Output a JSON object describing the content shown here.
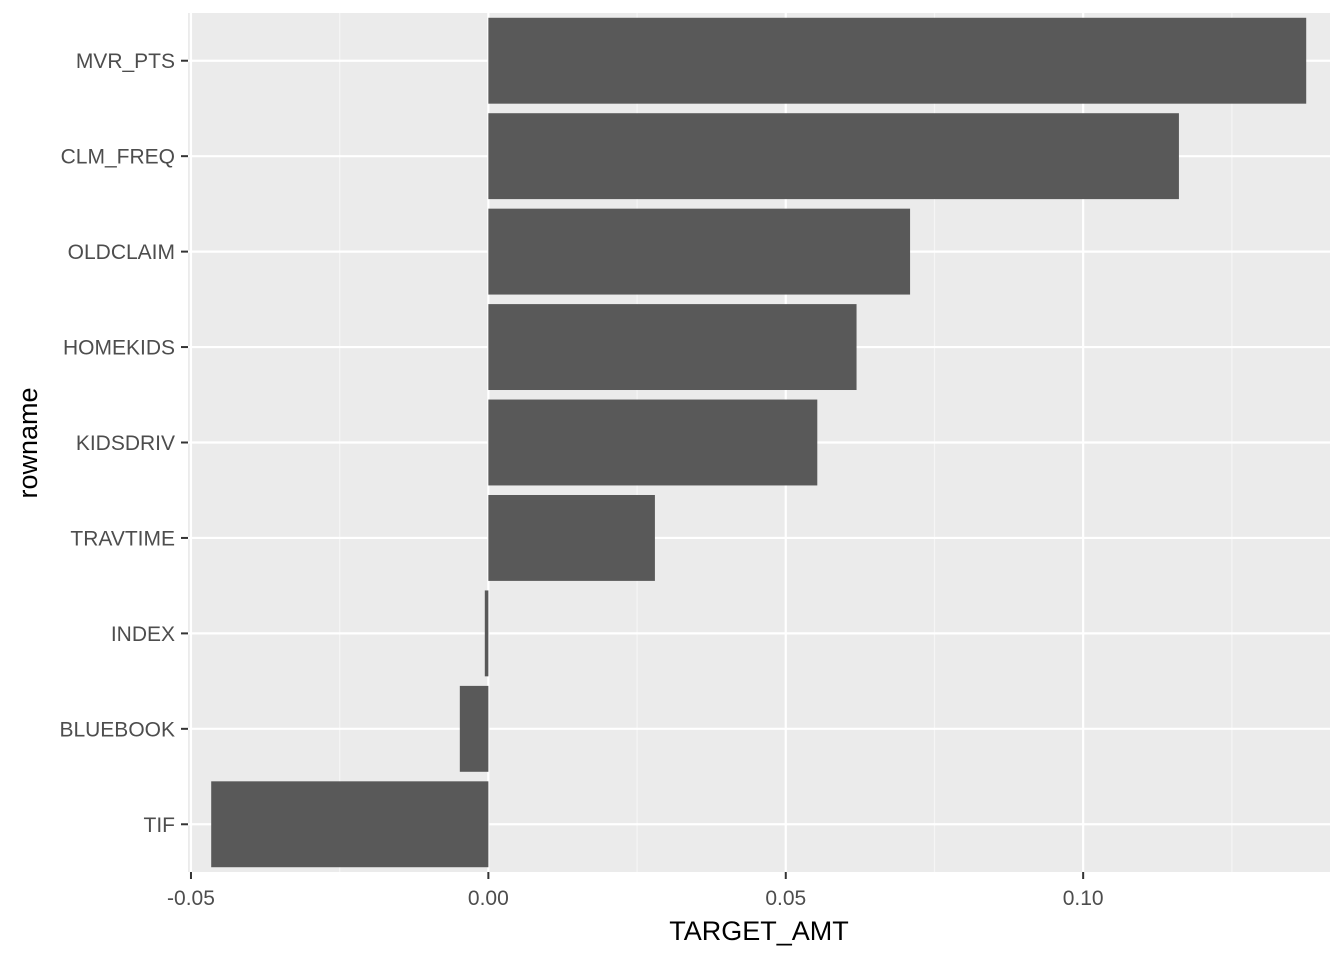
{
  "chart_data": {
    "type": "bar",
    "orientation": "horizontal",
    "title": "",
    "xlabel": "TARGET_AMT",
    "ylabel": "rowname",
    "categories": [
      "MVR_PTS",
      "CLM_FREQ",
      "OLDCLAIM",
      "HOMEKIDS",
      "KIDSDRIV",
      "TRAVTIME",
      "INDEX",
      "BLUEBOOK",
      "TIF"
    ],
    "values": [
      0.1375,
      0.1161,
      0.0709,
      0.0619,
      0.0553,
      0.028,
      -0.0006,
      -0.0048,
      -0.0466
    ],
    "xlim": [
      -0.0505,
      0.1415
    ],
    "x_ticks": [
      -0.05,
      0.0,
      0.05,
      0.1
    ],
    "x_tick_labels": [
      "-0.05",
      "0.00",
      "0.05",
      "0.10"
    ],
    "grid": true,
    "colors": {
      "bar": "#595959",
      "panel_background": "#ebebeb",
      "grid_major": "#ffffff",
      "grid_minor": "#f5f5f5",
      "tick_label": "#4d4d4d",
      "axis_title": "#000000"
    }
  }
}
